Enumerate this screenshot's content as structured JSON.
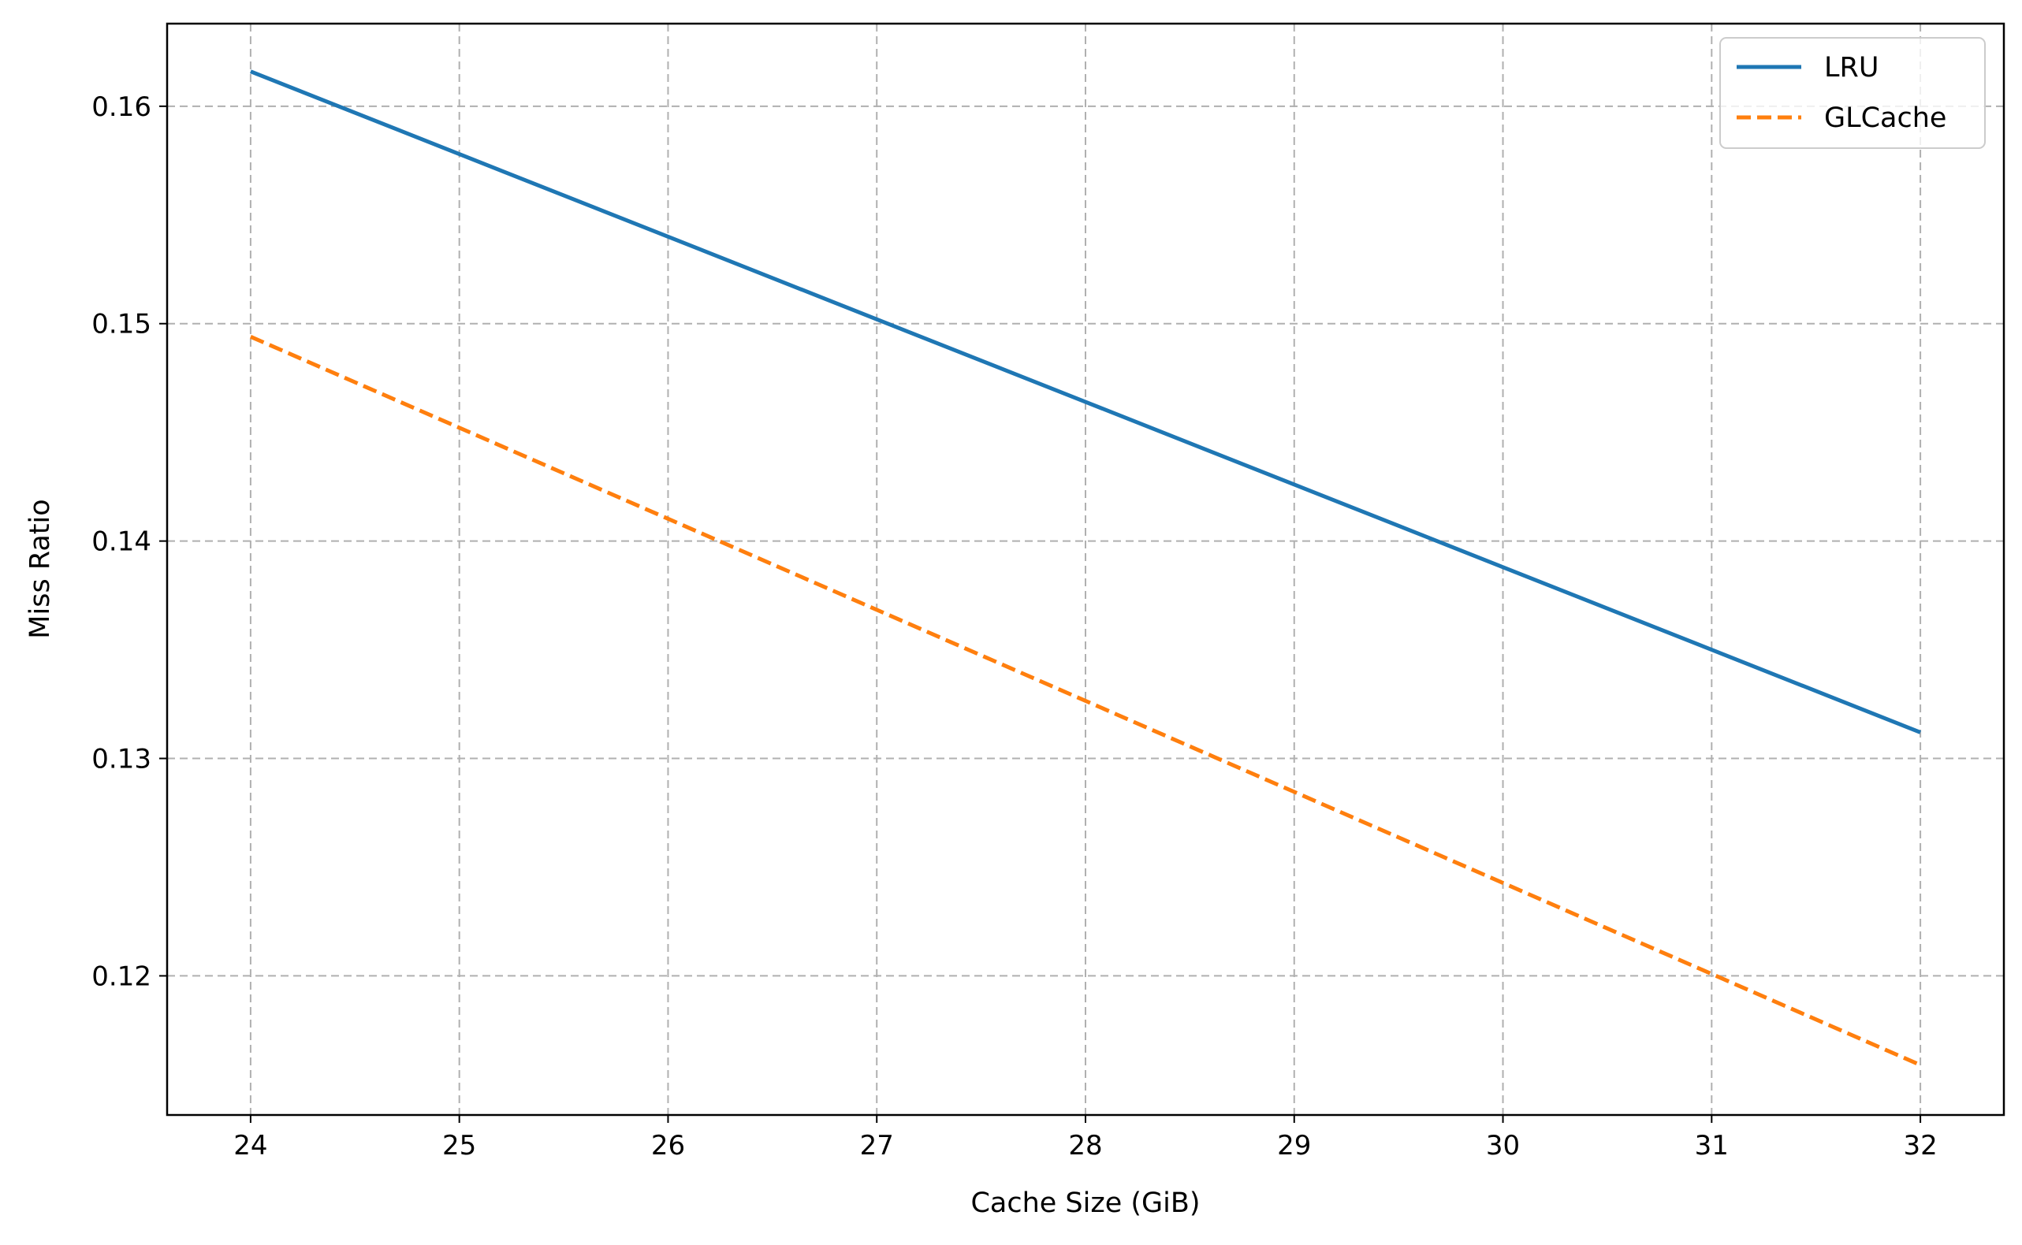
{
  "chart_data": {
    "type": "line",
    "title": "",
    "xlabel": "Cache Size (GiB)",
    "ylabel": "Miss Ratio",
    "x": [
      24,
      32
    ],
    "xlim": [
      23.6,
      32.4
    ],
    "ylim": [
      0.1136,
      0.1638
    ],
    "xticks": [
      "24",
      "25",
      "26",
      "27",
      "28",
      "29",
      "30",
      "31",
      "32"
    ],
    "yticks": [
      "0.12",
      "0.13",
      "0.14",
      "0.15",
      "0.16"
    ],
    "grid": true,
    "legend_position": "top-right",
    "series": [
      {
        "name": "LRU",
        "values": [
          0.1616,
          0.1312
        ],
        "color": "#1f77b4",
        "style": "solid"
      },
      {
        "name": "GLCache",
        "values": [
          0.1494,
          0.1159
        ],
        "color": "#ff7f0e",
        "style": "dashed"
      }
    ]
  }
}
